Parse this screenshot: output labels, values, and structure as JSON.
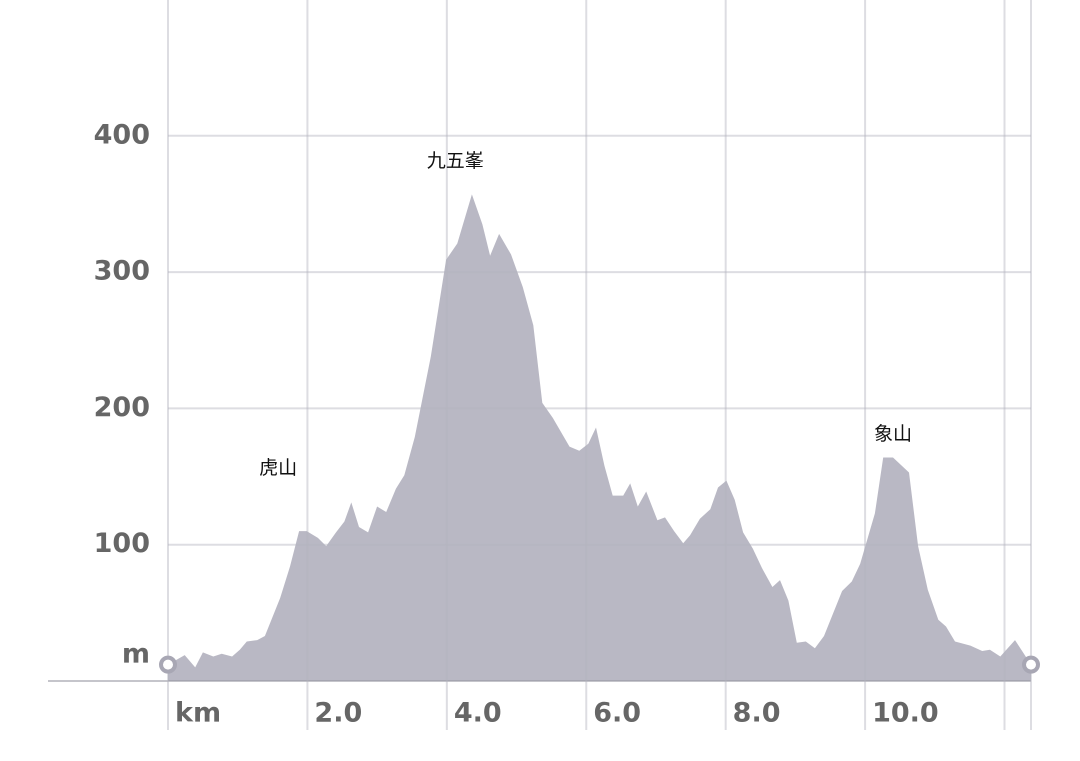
{
  "chart_data": {
    "type": "area",
    "x": [
      0,
      0.24,
      0.39,
      0.5,
      0.65,
      0.77,
      0.92,
      1.03,
      1.13,
      1.28,
      1.39,
      1.61,
      1.75,
      1.88,
      1.99,
      2.15,
      2.27,
      2.41,
      2.53,
      2.63,
      2.74,
      2.87,
      3.0,
      3.13,
      3.27,
      3.39,
      3.54,
      3.77,
      3.99,
      4.15,
      4.36,
      4.51,
      4.62,
      4.75,
      4.92,
      5.09,
      5.24,
      5.37,
      5.52,
      5.76,
      5.9,
      6.03,
      6.14,
      6.26,
      6.38,
      6.53,
      6.63,
      6.74,
      6.86,
      7.02,
      7.13,
      7.26,
      7.39,
      7.49,
      7.63,
      7.78,
      7.89,
      8.01,
      8.13,
      8.25,
      8.39,
      8.52,
      8.67,
      8.78,
      8.9,
      9.02,
      9.15,
      9.28,
      9.41,
      9.67,
      9.81,
      9.93,
      10.14,
      10.26,
      10.4,
      10.63,
      10.76,
      10.9,
      11.05,
      11.16,
      11.29,
      11.51,
      11.68,
      11.79,
      11.94,
      12.15,
      12.38
    ],
    "values": [
      12,
      19,
      10,
      21,
      18,
      20,
      18,
      23,
      29,
      30,
      33,
      61,
      84,
      110,
      110,
      105,
      99,
      109,
      117,
      131,
      113,
      109,
      128,
      124,
      141,
      151,
      179,
      238,
      309,
      321,
      357,
      335,
      312,
      328,
      313,
      289,
      261,
      204,
      193,
      172,
      169,
      174,
      186,
      158,
      136,
      136,
      145,
      128,
      139,
      118,
      120,
      110,
      101,
      107,
      119,
      126,
      142,
      147,
      133,
      109,
      97,
      83,
      69,
      74,
      59,
      28,
      29,
      24,
      33,
      66,
      73,
      86,
      123,
      164,
      164,
      153,
      99,
      67,
      45,
      40,
      29,
      26,
      22,
      23,
      18,
      30,
      12
    ],
    "color": "#b9b8c4",
    "xlim": [
      0,
      12.38
    ],
    "ylim": [
      0,
      500
    ],
    "xticks": [
      {
        "value": 0,
        "label": "km"
      },
      {
        "value": 2,
        "label": "2.0"
      },
      {
        "value": 4,
        "label": "4.0"
      },
      {
        "value": 6,
        "label": "6.0"
      },
      {
        "value": 8,
        "label": "8.0"
      },
      {
        "value": 10,
        "label": "10.0"
      }
    ],
    "xgrid": [
      12
    ],
    "yticks": [
      {
        "value": 0,
        "label": "m"
      },
      100,
      200,
      300,
      400
    ],
    "grid": true,
    "annotations": [
      {
        "text": "虎山",
        "x": 1.58,
        "y": 156
      },
      {
        "text": "九五峯",
        "x": 4.12,
        "y": 381
      },
      {
        "text": "象山",
        "x": 10.4,
        "y": 181
      }
    ]
  }
}
